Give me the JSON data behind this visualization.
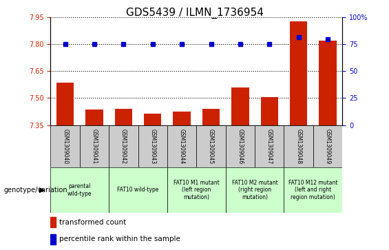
{
  "title": "GDS5439 / ILMN_1736954",
  "samples": [
    "GSM1309040",
    "GSM1309041",
    "GSM1309042",
    "GSM1309043",
    "GSM1309044",
    "GSM1309045",
    "GSM1309046",
    "GSM1309047",
    "GSM1309048",
    "GSM1309049"
  ],
  "transformed_count": [
    7.585,
    7.435,
    7.44,
    7.415,
    7.425,
    7.44,
    7.56,
    7.505,
    7.93,
    7.82
  ],
  "percentile_rank": [
    75,
    75,
    75,
    75,
    75,
    75,
    75,
    75,
    82,
    80
  ],
  "bar_bottom": 7.35,
  "ylim_left": [
    7.35,
    7.95
  ],
  "ylim_right": [
    0,
    100
  ],
  "yticks_left": [
    7.35,
    7.5,
    7.65,
    7.8,
    7.95
  ],
  "yticks_right": [
    0,
    25,
    50,
    75,
    100
  ],
  "bar_color": "#cc2200",
  "dot_color": "#0000cc",
  "bar_width": 0.6,
  "genotype_groups": [
    {
      "label": "parental\nwild-type",
      "start": 0,
      "end": 1,
      "color": "#ccffcc"
    },
    {
      "label": "FAT10 wild-type",
      "start": 2,
      "end": 3,
      "color": "#ccffcc"
    },
    {
      "label": "FAT10 M1 mutant\n(left region\nmutation)",
      "start": 4,
      "end": 5,
      "color": "#ccffcc"
    },
    {
      "label": "FAT10 M2 mutant\n(right region\nmutation)",
      "start": 6,
      "end": 7,
      "color": "#ccffcc"
    },
    {
      "label": "FAT10 M12 mutant\n(left and right\nregion mutation)",
      "start": 8,
      "end": 9,
      "color": "#ccffcc"
    }
  ],
  "legend_red_label": "transformed count",
  "legend_blue_label": "percentile rank within the sample",
  "genotype_label": "genotype/variation",
  "sample_box_color": "#cccccc",
  "title_fontsize": 11,
  "tick_fontsize": 7,
  "sample_fontsize": 5.5,
  "geno_fontsize": 5.5,
  "legend_fontsize": 7.5
}
